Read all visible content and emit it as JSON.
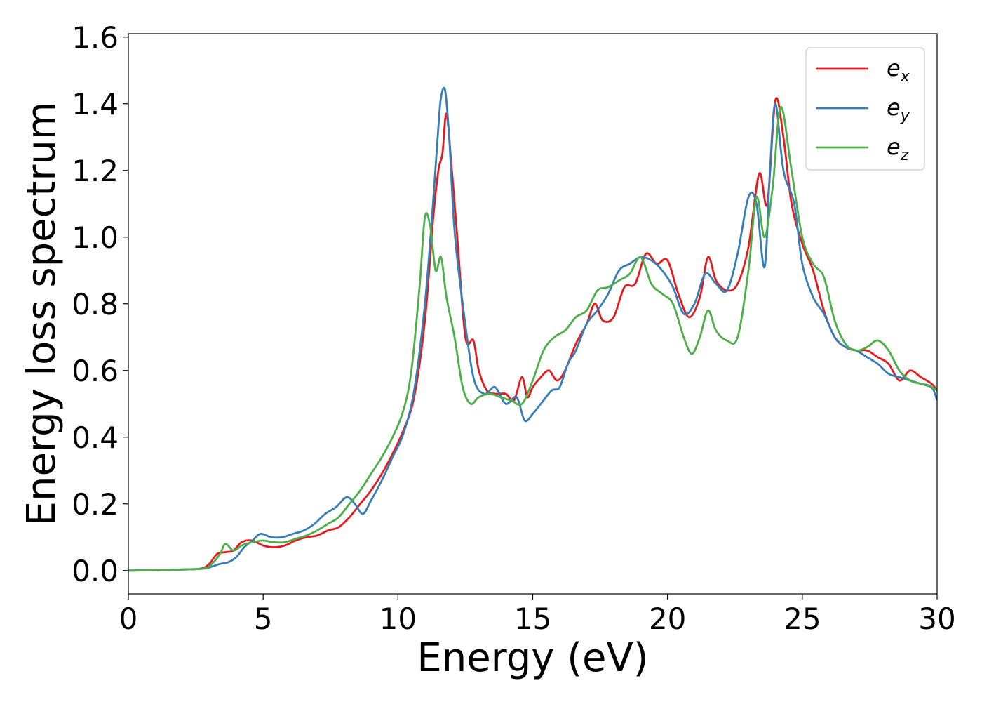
{
  "chart_data": {
    "type": "line",
    "title": "",
    "xlabel": "Energy (eV)",
    "ylabel": "Energy loss spectrum",
    "xlim": [
      0,
      30
    ],
    "ylim": [
      -0.07,
      1.61
    ],
    "xticks": [
      0,
      5,
      10,
      15,
      20,
      25,
      30
    ],
    "yticks": [
      0.0,
      0.2,
      0.4,
      0.6,
      0.8,
      1.0,
      1.2,
      1.4,
      1.6
    ],
    "xtick_labels": [
      "0",
      "5",
      "10",
      "15",
      "20",
      "25",
      "30"
    ],
    "ytick_labels": [
      "0.0",
      "0.2",
      "0.4",
      "0.6",
      "0.8",
      "1.0",
      "1.2",
      "1.4",
      "1.6"
    ],
    "grid": false,
    "legend_position": "top-right",
    "series": [
      {
        "name": "e",
        "sub": "x",
        "color": "#e41a1c",
        "x": [
          0,
          1,
          2,
          2.7,
          3.0,
          3.3,
          3.6,
          3.9,
          4.2,
          4.6,
          5.0,
          5.4,
          5.8,
          6.2,
          6.6,
          7.0,
          7.4,
          7.8,
          8.2,
          8.6,
          9.0,
          9.4,
          9.8,
          10.2,
          10.6,
          11.0,
          11.3,
          11.5,
          11.65,
          11.8,
          12.0,
          12.2,
          12.5,
          12.8,
          13.0,
          13.3,
          13.6,
          14.0,
          14.3,
          14.6,
          14.8,
          15.0,
          15.3,
          15.6,
          15.9,
          16.2,
          16.6,
          17.0,
          17.3,
          17.6,
          18.0,
          18.4,
          18.8,
          19.2,
          19.6,
          20.0,
          20.4,
          20.8,
          21.2,
          21.5,
          21.8,
          22.2,
          22.6,
          23.0,
          23.4,
          23.7,
          24.0,
          24.3,
          24.6,
          25.0,
          25.4,
          25.8,
          26.2,
          26.6,
          27.0,
          27.4,
          27.8,
          28.2,
          28.6,
          29.0,
          29.4,
          29.8,
          30.0
        ],
        "y": [
          0,
          0.001,
          0.003,
          0.006,
          0.02,
          0.05,
          0.055,
          0.06,
          0.085,
          0.09,
          0.075,
          0.07,
          0.075,
          0.09,
          0.1,
          0.105,
          0.12,
          0.13,
          0.16,
          0.2,
          0.24,
          0.29,
          0.35,
          0.42,
          0.52,
          0.75,
          1.05,
          1.2,
          1.25,
          1.37,
          1.2,
          1.0,
          0.7,
          0.69,
          0.6,
          0.54,
          0.53,
          0.53,
          0.51,
          0.58,
          0.52,
          0.55,
          0.58,
          0.6,
          0.57,
          0.6,
          0.68,
          0.74,
          0.8,
          0.75,
          0.76,
          0.85,
          0.86,
          0.95,
          0.92,
          0.93,
          0.83,
          0.76,
          0.82,
          0.94,
          0.87,
          0.84,
          0.86,
          0.97,
          1.19,
          1.1,
          1.41,
          1.3,
          1.1,
          0.98,
          0.9,
          0.78,
          0.7,
          0.67,
          0.66,
          0.66,
          0.64,
          0.62,
          0.57,
          0.6,
          0.58,
          0.56,
          0.54
        ]
      },
      {
        "name": "e",
        "sub": "y",
        "color": "#377eb8",
        "x": [
          0,
          1,
          2,
          2.8,
          3.1,
          3.4,
          3.7,
          4.0,
          4.3,
          4.6,
          4.9,
          5.3,
          5.7,
          6.1,
          6.5,
          6.9,
          7.3,
          7.7,
          8.1,
          8.4,
          8.7,
          9.0,
          9.4,
          9.8,
          10.2,
          10.6,
          11.0,
          11.3,
          11.5,
          11.6,
          11.75,
          11.9,
          12.1,
          12.4,
          12.8,
          13.2,
          13.6,
          14.0,
          14.4,
          14.7,
          15.0,
          15.3,
          15.7,
          16.0,
          16.3,
          16.6,
          17.0,
          17.4,
          17.8,
          18.2,
          18.6,
          19.0,
          19.4,
          19.8,
          20.2,
          20.6,
          21.0,
          21.4,
          21.8,
          22.2,
          22.6,
          23.0,
          23.3,
          23.6,
          23.8,
          24.0,
          24.3,
          24.7,
          25.0,
          25.4,
          25.8,
          26.2,
          26.6,
          27.0,
          27.4,
          27.8,
          28.2,
          28.6,
          29.0,
          29.4,
          29.8,
          30.0
        ],
        "y": [
          0,
          0.001,
          0.003,
          0.006,
          0.012,
          0.02,
          0.025,
          0.04,
          0.07,
          0.09,
          0.11,
          0.1,
          0.1,
          0.11,
          0.12,
          0.14,
          0.17,
          0.19,
          0.22,
          0.2,
          0.17,
          0.21,
          0.27,
          0.34,
          0.41,
          0.54,
          0.8,
          1.1,
          1.33,
          1.42,
          1.44,
          1.3,
          1.02,
          0.8,
          0.58,
          0.53,
          0.55,
          0.5,
          0.52,
          0.45,
          0.47,
          0.5,
          0.54,
          0.55,
          0.62,
          0.66,
          0.74,
          0.78,
          0.83,
          0.9,
          0.92,
          0.94,
          0.93,
          0.9,
          0.85,
          0.77,
          0.8,
          0.89,
          0.86,
          0.84,
          0.95,
          1.12,
          1.1,
          0.91,
          1.2,
          1.4,
          1.2,
          1.1,
          0.92,
          0.82,
          0.77,
          0.7,
          0.67,
          0.66,
          0.64,
          0.62,
          0.59,
          0.58,
          0.57,
          0.56,
          0.55,
          0.51
        ]
      },
      {
        "name": "e",
        "sub": "z",
        "color": "#4daf4a",
        "x": [
          0,
          1,
          2,
          2.8,
          3.1,
          3.4,
          3.6,
          3.9,
          4.2,
          4.6,
          5.0,
          5.4,
          5.8,
          6.2,
          6.6,
          7.0,
          7.4,
          7.8,
          8.2,
          8.6,
          9.0,
          9.4,
          9.8,
          10.2,
          10.5,
          10.8,
          11.0,
          11.2,
          11.4,
          11.6,
          11.8,
          12.1,
          12.4,
          12.7,
          13.0,
          13.4,
          13.8,
          14.2,
          14.6,
          15.0,
          15.4,
          15.8,
          16.2,
          16.6,
          17.0,
          17.4,
          17.8,
          18.2,
          18.6,
          19.0,
          19.4,
          19.8,
          20.2,
          20.6,
          20.9,
          21.2,
          21.5,
          21.8,
          22.2,
          22.6,
          23.0,
          23.3,
          23.6,
          23.9,
          24.2,
          24.6,
          25.0,
          25.4,
          25.8,
          26.2,
          26.6,
          27.0,
          27.4,
          27.8,
          28.2,
          28.6,
          29.0,
          29.4,
          29.8,
          30.0
        ],
        "y": [
          0,
          0.001,
          0.003,
          0.006,
          0.02,
          0.05,
          0.08,
          0.06,
          0.075,
          0.085,
          0.09,
          0.085,
          0.085,
          0.095,
          0.105,
          0.12,
          0.14,
          0.16,
          0.2,
          0.24,
          0.29,
          0.34,
          0.4,
          0.48,
          0.6,
          0.85,
          1.06,
          1.03,
          0.9,
          0.94,
          0.82,
          0.7,
          0.55,
          0.5,
          0.52,
          0.53,
          0.52,
          0.51,
          0.5,
          0.57,
          0.66,
          0.7,
          0.72,
          0.76,
          0.78,
          0.84,
          0.85,
          0.87,
          0.89,
          0.94,
          0.86,
          0.83,
          0.8,
          0.7,
          0.65,
          0.7,
          0.78,
          0.72,
          0.69,
          0.7,
          0.9,
          1.12,
          1.0,
          1.15,
          1.39,
          1.2,
          1.0,
          0.92,
          0.88,
          0.75,
          0.68,
          0.66,
          0.67,
          0.69,
          0.66,
          0.6,
          0.57,
          0.56,
          0.55,
          0.54
        ]
      }
    ]
  }
}
